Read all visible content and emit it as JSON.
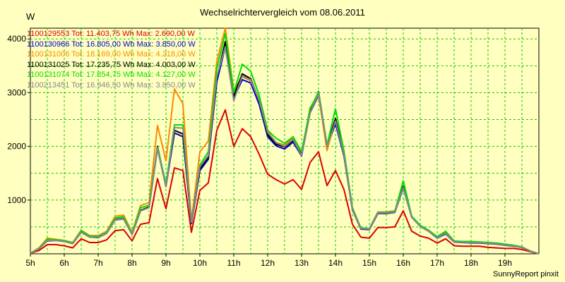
{
  "chart_data": {
    "type": "line",
    "title": "Wechselrichtervergleich vom 08.06.2011",
    "ylabel": "W",
    "xlabel": "",
    "footer": "SunnyReport pinxit",
    "xlim": [
      5,
      20
    ],
    "ylim": [
      0,
      4200
    ],
    "yticks": [
      1000,
      2000,
      3000,
      4000
    ],
    "xtick_labels": [
      "5h",
      "6h",
      "7h",
      "8h",
      "9h",
      "10h",
      "11h",
      "12h",
      "13h",
      "14h",
      "15h",
      "16h",
      "17h",
      "18h",
      "19h"
    ],
    "grid": true,
    "legend_position": "top-left",
    "x": [
      5.0,
      5.25,
      5.5,
      5.75,
      6.0,
      6.25,
      6.5,
      6.75,
      7.0,
      7.25,
      7.5,
      7.75,
      8.0,
      8.25,
      8.5,
      8.75,
      9.0,
      9.25,
      9.5,
      9.75,
      10.0,
      10.25,
      10.5,
      10.75,
      11.0,
      11.25,
      11.5,
      11.75,
      12.0,
      12.25,
      12.5,
      12.75,
      13.0,
      13.25,
      13.5,
      13.75,
      14.0,
      14.25,
      14.5,
      14.75,
      15.0,
      15.25,
      15.5,
      15.75,
      16.0,
      16.25,
      16.5,
      16.75,
      17.0,
      17.25,
      17.5,
      17.75,
      18.0,
      18.25,
      18.5,
      18.75,
      19.0,
      19.25,
      19.5,
      19.75,
      20.0
    ],
    "series": [
      {
        "name": "1100129553",
        "label": "1100129553 Tot: 11.403,75 Wh Max: 2.690,00 W",
        "color": "#dd0000",
        "values": [
          10,
          60,
          170,
          170,
          150,
          110,
          280,
          210,
          210,
          260,
          430,
          450,
          240,
          550,
          580,
          1400,
          840,
          1600,
          1550,
          400,
          1180,
          1320,
          2300,
          2680,
          2000,
          2330,
          2180,
          1850,
          1480,
          1380,
          1300,
          1380,
          1200,
          1700,
          1900,
          1270,
          1550,
          1200,
          550,
          310,
          290,
          490,
          490,
          500,
          800,
          420,
          330,
          290,
          200,
          280,
          150,
          140,
          140,
          140,
          120,
          110,
          100,
          100,
          80,
          40,
          0
        ]
      },
      {
        "name": "1100130966",
        "label": "1100130966 Tot: 16.805,00 Wh Max: 3.850,00 W",
        "color": "#0000cc",
        "values": [
          10,
          90,
          240,
          250,
          230,
          190,
          400,
          310,
          300,
          380,
          630,
          650,
          360,
          800,
          860,
          1960,
          1250,
          2250,
          2180,
          560,
          1550,
          1760,
          3200,
          3850,
          2890,
          3240,
          3180,
          2780,
          2180,
          2010,
          1950,
          2080,
          1820,
          2620,
          2950,
          1980,
          2420,
          1820,
          820,
          460,
          450,
          750,
          750,
          770,
          1220,
          680,
          510,
          420,
          290,
          370,
          220,
          210,
          200,
          200,
          190,
          180,
          160,
          140,
          120,
          50,
          0
        ]
      },
      {
        "name": "1100131006",
        "label": "1100131006 Tot: 18.169,00 Wh Max: 4.218,00 W",
        "color": "#ff8800",
        "values": [
          10,
          110,
          290,
          270,
          250,
          210,
          440,
          340,
          340,
          420,
          700,
          720,
          400,
          900,
          950,
          2390,
          1730,
          3070,
          2790,
          620,
          1900,
          2100,
          3590,
          4200,
          3030,
          3300,
          3220,
          2880,
          2270,
          2070,
          2030,
          2160,
          1860,
          2720,
          2950,
          1920,
          2500,
          1880,
          850,
          480,
          470,
          780,
          780,
          800,
          1250,
          690,
          520,
          420,
          300,
          400,
          230,
          220,
          220,
          210,
          200,
          190,
          170,
          150,
          120,
          50,
          0
        ]
      },
      {
        "name": "1100131025",
        "label": "1100131025 Tot: 17.235,75 Wh Max: 4.003,00 W",
        "color": "#000000",
        "values": [
          10,
          95,
          250,
          255,
          235,
          195,
          410,
          315,
          305,
          390,
          640,
          660,
          365,
          810,
          870,
          2000,
          1270,
          2300,
          2230,
          570,
          1580,
          1800,
          3260,
          3950,
          2940,
          3350,
          3260,
          2840,
          2220,
          2040,
          1990,
          2110,
          1850,
          2650,
          3020,
          2020,
          2520,
          1850,
          830,
          470,
          460,
          760,
          760,
          780,
          1250,
          690,
          520,
          430,
          300,
          380,
          225,
          215,
          205,
          205,
          195,
          185,
          165,
          145,
          125,
          50,
          0
        ]
      },
      {
        "name": "1100131074",
        "label": "1100131074 Tot: 17.854,75 Wh Max: 4.127,00 W",
        "color": "#00dd00",
        "values": [
          10,
          100,
          270,
          260,
          245,
          205,
          430,
          330,
          325,
          400,
          665,
          690,
          380,
          860,
          900,
          1980,
          1300,
          2400,
          2400,
          600,
          1650,
          1900,
          3450,
          4100,
          3000,
          3530,
          3400,
          2950,
          2300,
          2150,
          2060,
          2180,
          1900,
          2700,
          3010,
          2020,
          2700,
          1920,
          860,
          480,
          470,
          770,
          770,
          790,
          1360,
          700,
          530,
          440,
          320,
          420,
          240,
          230,
          230,
          220,
          210,
          200,
          180,
          160,
          130,
          50,
          0
        ]
      },
      {
        "name": "1100213451",
        "label": "1100213451 Tot: 16.946,50 Wh Max: 3.850,00 W",
        "color": "#888888",
        "values": [
          10,
          90,
          245,
          250,
          230,
          190,
          400,
          310,
          305,
          385,
          635,
          655,
          360,
          800,
          860,
          1960,
          1250,
          2350,
          2340,
          580,
          1620,
          1830,
          3300,
          3850,
          2850,
          3310,
          3240,
          2850,
          2260,
          2070,
          2000,
          2130,
          1830,
          2620,
          2980,
          1990,
          2470,
          1850,
          830,
          470,
          460,
          760,
          760,
          780,
          1230,
          680,
          510,
          425,
          295,
          380,
          225,
          215,
          205,
          205,
          195,
          185,
          165,
          145,
          125,
          50,
          0
        ]
      }
    ]
  }
}
